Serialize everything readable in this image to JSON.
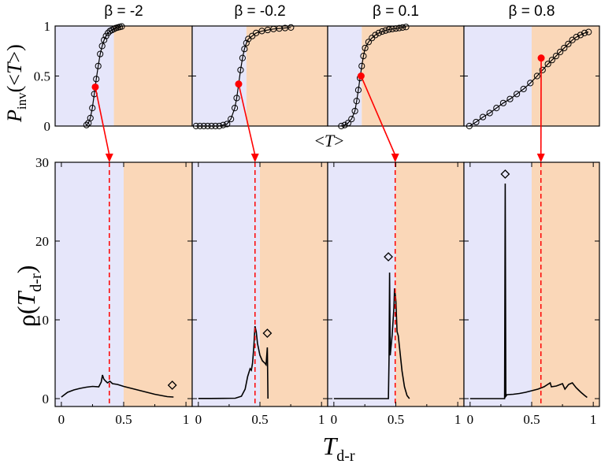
{
  "chart_data": {
    "type": "line",
    "colors": {
      "left_region": "#e6e6fa",
      "right_region": "#fad7b8",
      "highlight": "#ff0000",
      "line": "#000000"
    },
    "top_row": {
      "ylabel": "P",
      "ylabel_sub": "inv",
      "ylabel_paren_open": "(<",
      "ylabel_T": "T",
      "ylabel_paren_close": ">)",
      "xlabel_open": "<",
      "xlabel_T": "T",
      "xlabel_close": ">",
      "ylim": [
        0,
        1
      ],
      "yticks": [
        "0",
        "0.5",
        "1"
      ]
    },
    "bottom_row": {
      "ylabel": "ρ(",
      "ylabel_T": "T",
      "ylabel_sub": "d-r",
      "ylabel_close": ")",
      "xlabel_T": "T",
      "xlabel_sub": "d-r",
      "ylim": [
        -1,
        30
      ],
      "yticks": [
        "0",
        "10",
        "20",
        "30"
      ],
      "xlim": [
        -0.05,
        1.05
      ],
      "xticks": [
        "0",
        "0.5",
        "1"
      ]
    },
    "panels": [
      {
        "title": "β = -2",
        "top_x_range": [
          0.35,
          1.05
        ],
        "top_split": 0.65,
        "sigmoid_points": [
          [
            0.51,
            0.01
          ],
          [
            0.52,
            0.03
          ],
          [
            0.53,
            0.08
          ],
          [
            0.54,
            0.18
          ],
          [
            0.55,
            0.32
          ],
          [
            0.56,
            0.47
          ],
          [
            0.57,
            0.6
          ],
          [
            0.58,
            0.72
          ],
          [
            0.59,
            0.8
          ],
          [
            0.6,
            0.86
          ],
          [
            0.61,
            0.9
          ],
          [
            0.62,
            0.93
          ],
          [
            0.63,
            0.95
          ],
          [
            0.64,
            0.96
          ],
          [
            0.65,
            0.97
          ],
          [
            0.66,
            0.98
          ],
          [
            0.67,
            0.985
          ],
          [
            0.68,
            0.99
          ],
          [
            0.69,
            0.995
          ]
        ],
        "top_marker": [
          0.555,
          0.39
        ],
        "density_line": [
          [
            0,
            0.2
          ],
          [
            0.05,
            0.8
          ],
          [
            0.1,
            1.1
          ],
          [
            0.15,
            1.3
          ],
          [
            0.2,
            1.45
          ],
          [
            0.25,
            1.55
          ],
          [
            0.3,
            1.5
          ],
          [
            0.32,
            2.1
          ],
          [
            0.33,
            3.0
          ],
          [
            0.34,
            2.5
          ],
          [
            0.35,
            2.3
          ],
          [
            0.37,
            2.0
          ],
          [
            0.39,
            2.2
          ],
          [
            0.41,
            1.9
          ],
          [
            0.45,
            1.8
          ],
          [
            0.5,
            1.55
          ],
          [
            0.55,
            1.35
          ],
          [
            0.6,
            1.15
          ],
          [
            0.65,
            0.95
          ],
          [
            0.7,
            0.75
          ],
          [
            0.75,
            0.55
          ],
          [
            0.8,
            0.4
          ],
          [
            0.85,
            0.25
          ],
          [
            0.9,
            0.2
          ]
        ],
        "diamond": [
          0.89,
          1.7
        ],
        "dashed_x": 0.385
      },
      {
        "title": "β = -0.2",
        "top_x_range": [
          0.3,
          1.0
        ],
        "top_split": 0.58,
        "sigmoid_points": [
          [
            0.32,
            0.0
          ],
          [
            0.34,
            0.0
          ],
          [
            0.36,
            0.0
          ],
          [
            0.38,
            0.0
          ],
          [
            0.4,
            0.0
          ],
          [
            0.42,
            0.0
          ],
          [
            0.44,
            0.0
          ],
          [
            0.46,
            0.01
          ],
          [
            0.48,
            0.02
          ],
          [
            0.5,
            0.07
          ],
          [
            0.52,
            0.18
          ],
          [
            0.53,
            0.28
          ],
          [
            0.54,
            0.42
          ],
          [
            0.55,
            0.56
          ],
          [
            0.56,
            0.68
          ],
          [
            0.57,
            0.77
          ],
          [
            0.58,
            0.83
          ],
          [
            0.59,
            0.87
          ],
          [
            0.61,
            0.9
          ],
          [
            0.63,
            0.93
          ],
          [
            0.66,
            0.95
          ],
          [
            0.69,
            0.96
          ],
          [
            0.72,
            0.97
          ],
          [
            0.75,
            0.975
          ],
          [
            0.78,
            0.98
          ],
          [
            0.81,
            0.985
          ]
        ],
        "top_marker": [
          0.54,
          0.42
        ],
        "density_line": [
          [
            0,
            0.02
          ],
          [
            0.1,
            0.02
          ],
          [
            0.2,
            0.03
          ],
          [
            0.3,
            0.05
          ],
          [
            0.35,
            0.3
          ],
          [
            0.38,
            1.2
          ],
          [
            0.4,
            2.8
          ],
          [
            0.42,
            3.8
          ],
          [
            0.43,
            3.6
          ],
          [
            0.44,
            4.5
          ],
          [
            0.45,
            6.5
          ],
          [
            0.46,
            9.2
          ],
          [
            0.47,
            8.5
          ],
          [
            0.48,
            7.0
          ],
          [
            0.5,
            5.5
          ],
          [
            0.52,
            4.8
          ],
          [
            0.54,
            4.5
          ],
          [
            0.55,
            4.3
          ],
          [
            0.56,
            6.5
          ],
          [
            0.565,
            0.0
          ]
        ],
        "diamond": [
          0.56,
          8.3
        ],
        "dashed_x": 0.46
      },
      {
        "title": "β = 0.1",
        "top_x_range": [
          0.4,
          0.8
        ],
        "top_split": 0.5,
        "sigmoid_points": [
          [
            0.44,
            0.0
          ],
          [
            0.45,
            0.01
          ],
          [
            0.46,
            0.03
          ],
          [
            0.47,
            0.07
          ],
          [
            0.48,
            0.15
          ],
          [
            0.485,
            0.25
          ],
          [
            0.49,
            0.36
          ],
          [
            0.495,
            0.48
          ],
          [
            0.5,
            0.6
          ],
          [
            0.505,
            0.7
          ],
          [
            0.51,
            0.78
          ],
          [
            0.52,
            0.84
          ],
          [
            0.53,
            0.88
          ],
          [
            0.54,
            0.91
          ],
          [
            0.55,
            0.93
          ],
          [
            0.56,
            0.945
          ],
          [
            0.57,
            0.955
          ],
          [
            0.58,
            0.965
          ],
          [
            0.59,
            0.97
          ],
          [
            0.6,
            0.975
          ],
          [
            0.61,
            0.98
          ],
          [
            0.62,
            0.985
          ],
          [
            0.63,
            0.99
          ]
        ],
        "top_marker": [
          0.498,
          0.5
        ],
        "density_line": [
          [
            0,
            0.0
          ],
          [
            0.1,
            0.0
          ],
          [
            0.2,
            0.0
          ],
          [
            0.3,
            0.0
          ],
          [
            0.4,
            0.0
          ],
          [
            0.44,
            0.0
          ],
          [
            0.445,
            5.0
          ],
          [
            0.45,
            16.0
          ],
          [
            0.455,
            5.5
          ],
          [
            0.47,
            8.0
          ],
          [
            0.485,
            11.5
          ],
          [
            0.49,
            14.0
          ],
          [
            0.5,
            12.5
          ],
          [
            0.51,
            8.5
          ],
          [
            0.52,
            8.0
          ],
          [
            0.53,
            6.5
          ],
          [
            0.55,
            3.5
          ],
          [
            0.57,
            1.5
          ],
          [
            0.59,
            0.4
          ],
          [
            0.61,
            0.0
          ]
        ],
        "diamond": [
          0.44,
          18.0
        ],
        "dashed_x": 0.495
      },
      {
        "title": "β = 0.8",
        "top_x_range": [
          0.0,
          1.0
        ],
        "top_split": 0.5,
        "sigmoid_points": [
          [
            0.04,
            0.0
          ],
          [
            0.09,
            0.04
          ],
          [
            0.14,
            0.09
          ],
          [
            0.19,
            0.13
          ],
          [
            0.24,
            0.18
          ],
          [
            0.29,
            0.23
          ],
          [
            0.34,
            0.27
          ],
          [
            0.39,
            0.32
          ],
          [
            0.44,
            0.37
          ],
          [
            0.49,
            0.43
          ],
          [
            0.54,
            0.5
          ],
          [
            0.58,
            0.56
          ],
          [
            0.62,
            0.62
          ],
          [
            0.65,
            0.66
          ],
          [
            0.68,
            0.7
          ],
          [
            0.71,
            0.74
          ],
          [
            0.74,
            0.78
          ],
          [
            0.77,
            0.82
          ],
          [
            0.8,
            0.86
          ],
          [
            0.83,
            0.89
          ],
          [
            0.86,
            0.91
          ],
          [
            0.89,
            0.93
          ],
          [
            0.92,
            0.94
          ]
        ],
        "top_marker": [
          0.57,
          0.68
        ],
        "density_line": [
          [
            0,
            0.0
          ],
          [
            0.05,
            0.0
          ],
          [
            0.1,
            0.0
          ],
          [
            0.15,
            0.0
          ],
          [
            0.2,
            0.0
          ],
          [
            0.25,
            0.0
          ],
          [
            0.28,
            0.0
          ],
          [
            0.285,
            27.3
          ],
          [
            0.29,
            0.3
          ],
          [
            0.3,
            0.5
          ],
          [
            0.35,
            0.55
          ],
          [
            0.4,
            0.65
          ],
          [
            0.45,
            0.8
          ],
          [
            0.5,
            1.0
          ],
          [
            0.55,
            1.2
          ],
          [
            0.6,
            1.5
          ],
          [
            0.65,
            2.0
          ],
          [
            0.66,
            1.5
          ],
          [
            0.7,
            1.6
          ],
          [
            0.75,
            1.9
          ],
          [
            0.77,
            1.2
          ],
          [
            0.8,
            1.8
          ],
          [
            0.83,
            2.0
          ],
          [
            0.86,
            1.4
          ],
          [
            0.88,
            1.1
          ],
          [
            0.9,
            0.8
          ],
          [
            0.93,
            0.4
          ],
          [
            0.95,
            0.15
          ]
        ],
        "diamond": [
          0.285,
          28.5
        ],
        "dashed_x": 0.575
      }
    ]
  }
}
